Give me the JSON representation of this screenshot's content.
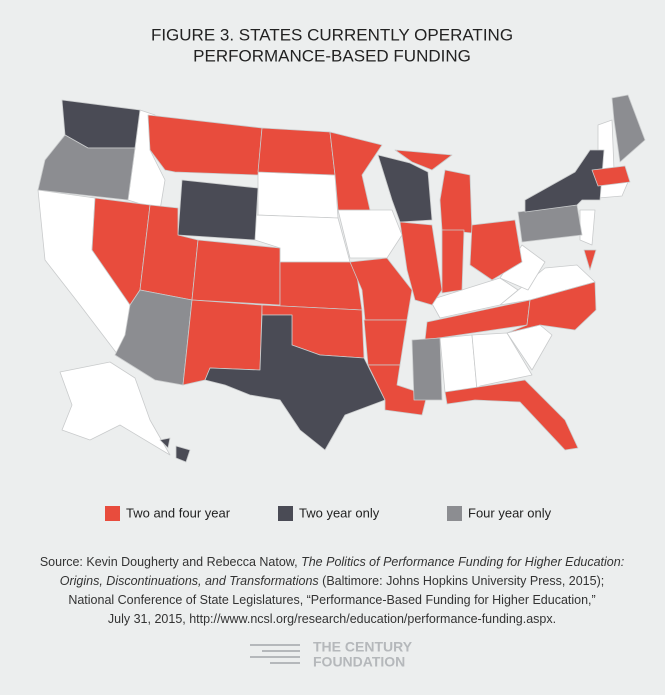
{
  "header": {
    "title_lines": [
      "FIGURE 3. STATES CURRENTLY OPERATING",
      "PERFORMANCE-BASED FUNDING"
    ]
  },
  "legend": {
    "items": [
      {
        "label": "Two and four year",
        "color": "#e84c3d"
      },
      {
        "label": "Two year only",
        "color": "#4a4b55"
      },
      {
        "label": "Four year only",
        "color": "#8c8d91"
      }
    ]
  },
  "source": {
    "lines": [
      [
        {
          "text": "Source: Kevin Dougherty and Rebecca Natow, ",
          "italic": false
        },
        {
          "text": "The Politics of Performance Funding for Higher Education:",
          "italic": true
        }
      ],
      [
        {
          "text": "Origins, Discontinuations, and Transformations",
          "italic": true
        },
        {
          "text": " (Baltimore: Johns Hopkins University Press, 2015);",
          "italic": false
        }
      ],
      [
        {
          "text": "National Conference of State Legislatures, “Performance-Based Funding for Higher Education,”",
          "italic": false
        }
      ],
      [
        {
          "text": "July 31, 2015, http://www.ncsl.org/research/education/performance-funding.aspx.",
          "italic": false
        }
      ]
    ]
  },
  "logo": {
    "lines": [
      "THE CENTURY",
      "FOUNDATION"
    ]
  }
}
